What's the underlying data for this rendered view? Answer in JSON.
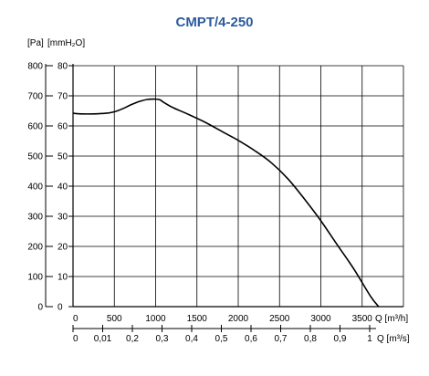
{
  "chart_data": {
    "type": "line",
    "title": "CMPT/4-250",
    "ylabel_primary": "[Pa]",
    "ylabel_secondary": "[mmH₂O]",
    "xlabel_primary": "Q [m³/h]",
    "xlabel_secondary": "Q [m³/s]",
    "y_primary_ticks": [
      "0",
      "100",
      "200",
      "300",
      "400",
      "500",
      "600",
      "700",
      "800"
    ],
    "y_secondary_ticks": [
      "0",
      "10",
      "20",
      "30",
      "40",
      "50",
      "60",
      "70",
      "80"
    ],
    "x_primary_ticks": [
      "0",
      "500",
      "1000",
      "1500",
      "2000",
      "2500",
      "3000",
      "3500"
    ],
    "x_secondary_ticks": [
      "0",
      "0,01",
      "0,2",
      "0,3",
      "0,4",
      "0,5",
      "0,6",
      "0,7",
      "0,8",
      "0,9",
      "1"
    ],
    "xlim": [
      0,
      4000
    ],
    "ylim": [
      0,
      800
    ],
    "grid": true,
    "series": [
      {
        "color": "#000000",
        "x": [
          0,
          100,
          250,
          400,
          500,
          600,
          700,
          800,
          900,
          1000,
          1050,
          1100,
          1200,
          1400,
          1600,
          1800,
          2000,
          2200,
          2400,
          2600,
          2800,
          3000,
          3200,
          3400,
          3600,
          3700
        ],
        "y": [
          642,
          640,
          640,
          642,
          647,
          657,
          670,
          681,
          688,
          689,
          687,
          678,
          662,
          638,
          612,
          582,
          552,
          518,
          478,
          425,
          358,
          285,
          205,
          125,
          35,
          0
        ]
      }
    ]
  }
}
